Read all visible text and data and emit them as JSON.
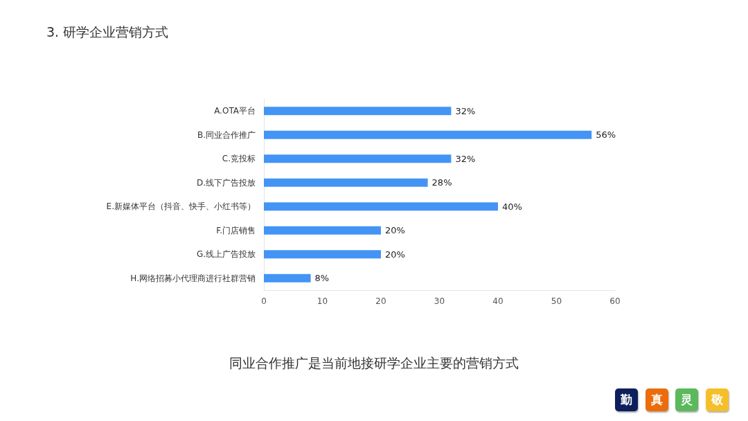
{
  "chart_data": {
    "type": "bar",
    "orientation": "horizontal",
    "title": "3. 研学企业营销方式",
    "categories": [
      "A.OTA平台",
      "B.同业合作推广",
      "C.竞投标",
      "D.线下广告投放",
      "E.新媒体平台（抖音、快手、小红书等）",
      "F.门店销售",
      "G.线上广告投放",
      "H.网络招募小代理商进行社群营销"
    ],
    "values": [
      32,
      56,
      32,
      28,
      40,
      20,
      20,
      8
    ],
    "value_labels": [
      "32%",
      "56%",
      "32%",
      "28%",
      "40%",
      "20%",
      "20%",
      "8%"
    ],
    "color": "#4394f5",
    "xlim": [
      0,
      60
    ],
    "xticks": [
      0,
      10,
      20,
      30,
      40,
      50,
      60
    ],
    "grid": false,
    "annotations": [
      "同业合作推广是当前地接研学企业主要的营销方式",
      "勤",
      "真",
      "灵",
      "敬"
    ]
  }
}
